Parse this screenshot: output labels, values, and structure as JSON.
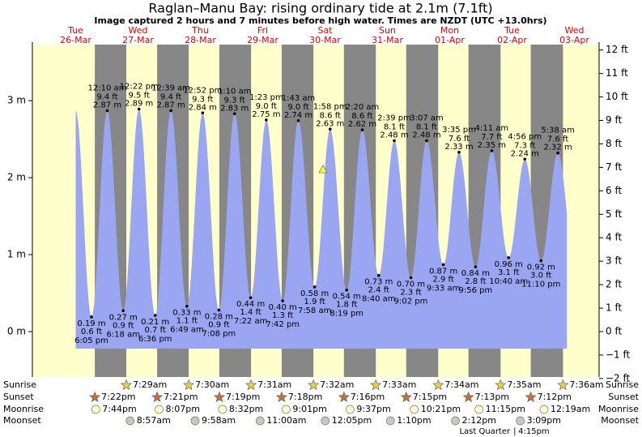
{
  "chart_data": {
    "type": "area",
    "title": "Raglan–Manu Bay: rising  ordinary tide at 2.1m (7.1ft)",
    "subtitle": "Image captured 2 hours and 7 minutes before high water. Times are NZDT (UTC +13.0hrs)",
    "color": "#9ba6f3",
    "day_color": "#ffffcc",
    "night_color": "#878787",
    "ylim": [
      -0.59,
      3.76
    ],
    "yticks": [
      {
        "value": 0,
        "label": "0 m"
      },
      {
        "value": 1,
        "label": "1 m"
      },
      {
        "value": 2,
        "label": "2 m"
      },
      {
        "value": 3,
        "label": "3 m"
      }
    ],
    "y2lim": [
      -1.936,
      12.336
    ],
    "y2ticks": [
      {
        "value": -2,
        "label": "−2 ft"
      },
      {
        "value": -1,
        "label": "−1 ft"
      },
      {
        "value": 0,
        "label": "0 ft"
      },
      {
        "value": 1,
        "label": "1 ft"
      },
      {
        "value": 2,
        "label": "2 ft"
      },
      {
        "value": 3,
        "label": "3 ft"
      },
      {
        "value": 4,
        "label": "4 ft"
      },
      {
        "value": 5,
        "label": "5 ft"
      },
      {
        "value": 6,
        "label": "6 ft"
      },
      {
        "value": 7,
        "label": "7 ft"
      },
      {
        "value": 8,
        "label": "8 ft"
      },
      {
        "value": 9,
        "label": "9 ft"
      },
      {
        "value": 10,
        "label": "10 ft"
      },
      {
        "value": 11,
        "label": "11 ft"
      },
      {
        "value": 12,
        "label": "12 ft"
      }
    ],
    "rows": [
      "Sunrise",
      "Sunset",
      "Moonrise",
      "Moonset"
    ],
    "days": [
      {
        "weekday": "Tue",
        "date": "26-Mar",
        "tides": [
          {
            "time": "6:05 pm",
            "value": 0.19,
            "value_label": "0.19 m",
            "ft_label": "0.6 ft"
          }
        ],
        "sunset": "7:22pm",
        "moonrise": "7:44pm"
      },
      {
        "weekday": "Wed",
        "date": "27-Mar",
        "tides": [
          {
            "time": "12:10 am",
            "value": 2.87,
            "value_label": "2.87 m",
            "ft_label": "9.4 ft"
          },
          {
            "time": "6:18 am",
            "value": 0.27,
            "value_label": "0.27 m",
            "ft_label": "0.9 ft"
          },
          {
            "time": "12:22 pm",
            "value": 2.89,
            "value_label": "2.89 m",
            "ft_label": "9.5 ft"
          },
          {
            "time": "6:36 pm",
            "value": 0.21,
            "value_label": "0.21 m",
            "ft_label": "0.7 ft"
          }
        ],
        "sunrise": "7:29am",
        "sunset": "7:21pm",
        "moonrise": "8:07pm",
        "moonset": "8:57am"
      },
      {
        "weekday": "Thu",
        "date": "28-Mar",
        "tides": [
          {
            "time": "12:39 am",
            "value": 2.87,
            "value_label": "2.87 m",
            "ft_label": "9.4 ft"
          },
          {
            "time": "6:49 am",
            "value": 0.33,
            "value_label": "0.33 m",
            "ft_label": "1.1 ft"
          },
          {
            "time": "12:52 pm",
            "value": 2.84,
            "value_label": "2.84 m",
            "ft_label": "9.3 ft"
          },
          {
            "time": "7:08 pm",
            "value": 0.28,
            "value_label": "0.28 m",
            "ft_label": "0.9 ft"
          }
        ],
        "sunrise": "7:30am",
        "sunset": "7:19pm",
        "moonrise": "8:32pm",
        "moonset": "9:58am"
      },
      {
        "weekday": "Fri",
        "date": "29-Mar",
        "tides": [
          {
            "time": "1:10 am",
            "value": 2.83,
            "value_label": "2.83 m",
            "ft_label": "9.3 ft"
          },
          {
            "time": "7:22 am",
            "value": 0.44,
            "value_label": "0.44 m",
            "ft_label": "1.4 ft"
          },
          {
            "time": "1:23 pm",
            "value": 2.75,
            "value_label": "2.75 m",
            "ft_label": "9.0 ft"
          },
          {
            "time": "7:42 pm",
            "value": 0.4,
            "value_label": "0.40 m",
            "ft_label": "1.3 ft"
          }
        ],
        "sunrise": "7:31am",
        "sunset": "7:18pm",
        "moonrise": "9:01pm",
        "moonset": "11:00am"
      },
      {
        "weekday": "Sat",
        "date": "30-Mar",
        "tides": [
          {
            "time": "1:43 am",
            "value": 2.74,
            "value_label": "2.74 m",
            "ft_label": "9.0 ft"
          },
          {
            "time": "7:58 am",
            "value": 0.58,
            "value_label": "0.58 m",
            "ft_label": "1.9 ft"
          },
          {
            "time": "1:58 pm",
            "value": 2.63,
            "value_label": "2.63 m",
            "ft_label": "8.6 ft"
          },
          {
            "time": "8:19 pm",
            "value": 0.54,
            "value_label": "0.54 m",
            "ft_label": "1.8 ft"
          }
        ],
        "sunrise": "7:32am",
        "sunset": "7:16pm",
        "moonrise": "9:37pm",
        "moonset": "12:05pm"
      },
      {
        "weekday": "Sun",
        "date": "31-Mar",
        "tides": [
          {
            "time": "2:20 am",
            "value": 2.62,
            "value_label": "2.62 m",
            "ft_label": "8.6 ft"
          },
          {
            "time": "8:40 am",
            "value": 0.73,
            "value_label": "0.73 m",
            "ft_label": "2.4 ft"
          },
          {
            "time": "2:39 pm",
            "value": 2.48,
            "value_label": "2.48 m",
            "ft_label": "8.1 ft"
          },
          {
            "time": "9:02 pm",
            "value": 0.7,
            "value_label": "0.70 m",
            "ft_label": "2.3 ft"
          }
        ],
        "sunrise": "7:33am",
        "sunset": "7:15pm",
        "moonrise": "10:21pm",
        "moonset": "1:10pm"
      },
      {
        "weekday": "Mon",
        "date": "01-Apr",
        "tides": [
          {
            "time": "3:07 am",
            "value": 2.48,
            "value_label": "2.48 m",
            "ft_label": "8.1 ft"
          },
          {
            "time": "9:33 am",
            "value": 0.87,
            "value_label": "0.87 m",
            "ft_label": "2.9 ft"
          },
          {
            "time": "3:35 pm",
            "value": 2.33,
            "value_label": "2.33 m",
            "ft_label": "7.6 ft"
          },
          {
            "time": "9:56 pm",
            "value": 0.84,
            "value_label": "0.84 m",
            "ft_label": "2.8 ft"
          }
        ],
        "sunrise": "7:34am",
        "sunset": "7:13pm",
        "moonrise": "11:15pm",
        "moonset": "2:12pm"
      },
      {
        "weekday": "Tue",
        "date": "02-Apr",
        "tides": [
          {
            "time": "4:11 am",
            "value": 2.35,
            "value_label": "2.35 m",
            "ft_label": "7.7 ft"
          },
          {
            "time": "10:40 am",
            "value": 0.96,
            "value_label": "0.96 m",
            "ft_label": "3.1 ft"
          },
          {
            "time": "4:56 pm",
            "value": 2.24,
            "value_label": "2.24 m",
            "ft_label": "7.3 ft"
          },
          {
            "time": "11:10 pm",
            "value": 0.92,
            "value_label": "0.92 m",
            "ft_label": "3.0 ft"
          }
        ],
        "sunrise": "7:35am",
        "sunset": "7:12pm",
        "moonset": "3:09pm",
        "moon_phase": {
          "name": "Last Quarter",
          "time": "4:15pm"
        }
      },
      {
        "weekday": "Wed",
        "date": "03-Apr",
        "tides": [
          {
            "time": "5:38 am",
            "value": 2.32,
            "value_label": "2.32 m",
            "ft_label": "7.6 ft"
          }
        ],
        "sunrise": "7:36am",
        "moonrise": "12:19am"
      }
    ]
  }
}
